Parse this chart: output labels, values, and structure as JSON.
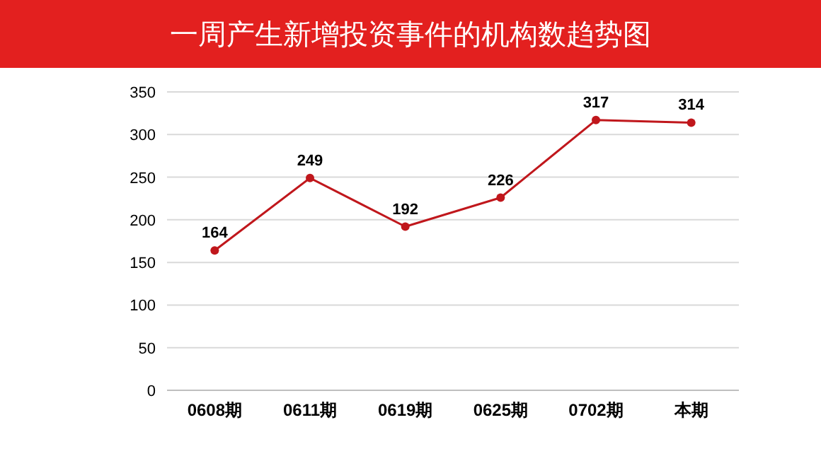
{
  "chart_data": {
    "type": "line",
    "title": "一周产生新增投资事件的机构数趋势图",
    "categories": [
      "0608期",
      "0611期",
      "0619期",
      "0625期",
      "0702期",
      "本期"
    ],
    "values": [
      164,
      249,
      192,
      226,
      317,
      314
    ],
    "color": "#c0171c",
    "ylim": [
      0,
      350
    ],
    "yticks": [
      0,
      50,
      100,
      150,
      200,
      250,
      300,
      350
    ],
    "grid": "y",
    "marker": "circle",
    "data_labels": true
  }
}
